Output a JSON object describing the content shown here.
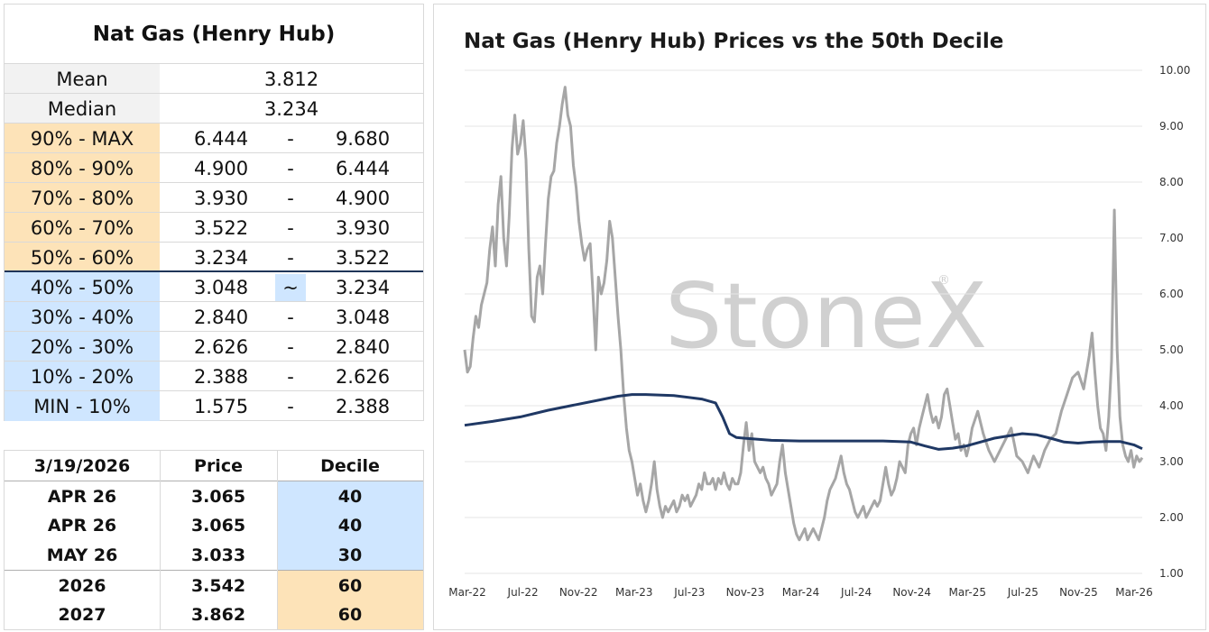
{
  "decile_table": {
    "title": "Nat Gas (Henry Hub)",
    "mean_label": "Mean",
    "mean_value": "3.812",
    "median_label": "Median",
    "median_value": "3.234",
    "rows": [
      {
        "label": "90% - MAX",
        "low": "6.444",
        "sep": "-",
        "high": "9.680",
        "zone": "orange"
      },
      {
        "label": "80% - 90%",
        "low": "4.900",
        "sep": "-",
        "high": "6.444",
        "zone": "orange"
      },
      {
        "label": "70% - 80%",
        "low": "3.930",
        "sep": "-",
        "high": "4.900",
        "zone": "orange"
      },
      {
        "label": "60% - 70%",
        "low": "3.522",
        "sep": "-",
        "high": "3.930",
        "zone": "orange"
      },
      {
        "label": "50% - 60%",
        "low": "3.234",
        "sep": "-",
        "high": "3.522",
        "zone": "orange"
      },
      {
        "label": "40% - 50%",
        "low": "3.048",
        "sep": "~",
        "high": "3.234",
        "zone": "blue"
      },
      {
        "label": "30% - 40%",
        "low": "2.840",
        "sep": "-",
        "high": "3.048",
        "zone": "blue"
      },
      {
        "label": "20% - 30%",
        "low": "2.626",
        "sep": "-",
        "high": "2.840",
        "zone": "blue"
      },
      {
        "label": "10% - 20%",
        "low": "2.388",
        "sep": "-",
        "high": "2.626",
        "zone": "blue"
      },
      {
        "label": "MIN - 10%",
        "low": "1.575",
        "sep": "-",
        "high": "2.388",
        "zone": "blue"
      }
    ],
    "colors": {
      "above_median": "#fde3b8",
      "below_median": "#cfe6ff",
      "median_rule": "#1f3558"
    }
  },
  "quote_table": {
    "headers": {
      "date": "3/19/2026",
      "price": "Price",
      "decile": "Decile"
    },
    "rows": [
      {
        "contract": "APR 26",
        "price": "3.065",
        "decile": "40",
        "zone": "blue"
      },
      {
        "contract": "APR 26",
        "price": "3.065",
        "decile": "40",
        "zone": "blue"
      },
      {
        "contract": "MAY 26",
        "price": "3.033",
        "decile": "30",
        "zone": "blue"
      },
      {
        "contract": "2026",
        "price": "3.542",
        "decile": "60",
        "zone": "orange"
      },
      {
        "contract": "2027",
        "price": "3.862",
        "decile": "60",
        "zone": "orange"
      }
    ]
  },
  "chart_data": {
    "type": "line",
    "title": "Nat Gas (Henry Hub) Prices vs the 50th Decile",
    "xlabel": "",
    "ylabel": "",
    "ylim": [
      1.0,
      10.0
    ],
    "yticks": [
      "1.00",
      "2.00",
      "3.00",
      "4.00",
      "5.00",
      "6.00",
      "7.00",
      "8.00",
      "9.00",
      "10.00"
    ],
    "y_axis_side": "right",
    "x_tick_labels": [
      "Mar-22",
      "Jul-22",
      "Nov-22",
      "Mar-23",
      "Jul-23",
      "Nov-23",
      "Mar-24",
      "Jul-24",
      "Nov-24",
      "Mar-25",
      "Jul-25",
      "Nov-25",
      "Mar-26"
    ],
    "x_range_months": [
      0,
      48.6
    ],
    "grid": "horizontal",
    "legend": "none",
    "watermark": "StoneX",
    "series": [
      {
        "color": "#a6a6a6",
        "points": [
          [
            0.0,
            5.0
          ],
          [
            0.2,
            4.6
          ],
          [
            0.4,
            4.7
          ],
          [
            0.6,
            5.2
          ],
          [
            0.8,
            5.6
          ],
          [
            1.0,
            5.4
          ],
          [
            1.2,
            5.8
          ],
          [
            1.4,
            6.0
          ],
          [
            1.6,
            6.2
          ],
          [
            1.8,
            6.8
          ],
          [
            2.0,
            7.2
          ],
          [
            2.2,
            6.5
          ],
          [
            2.4,
            7.6
          ],
          [
            2.6,
            8.1
          ],
          [
            2.8,
            7.0
          ],
          [
            3.0,
            6.5
          ],
          [
            3.2,
            7.4
          ],
          [
            3.4,
            8.6
          ],
          [
            3.6,
            9.2
          ],
          [
            3.8,
            8.5
          ],
          [
            4.0,
            8.7
          ],
          [
            4.2,
            9.1
          ],
          [
            4.4,
            8.4
          ],
          [
            4.6,
            6.8
          ],
          [
            4.8,
            5.6
          ],
          [
            5.0,
            5.5
          ],
          [
            5.2,
            6.3
          ],
          [
            5.4,
            6.5
          ],
          [
            5.6,
            6.0
          ],
          [
            5.8,
            6.9
          ],
          [
            6.0,
            7.7
          ],
          [
            6.2,
            8.1
          ],
          [
            6.4,
            8.2
          ],
          [
            6.6,
            8.7
          ],
          [
            6.8,
            9.0
          ],
          [
            7.0,
            9.4
          ],
          [
            7.2,
            9.7
          ],
          [
            7.4,
            9.2
          ],
          [
            7.6,
            9.0
          ],
          [
            7.8,
            8.3
          ],
          [
            8.0,
            7.9
          ],
          [
            8.2,
            7.3
          ],
          [
            8.4,
            6.9
          ],
          [
            8.6,
            6.6
          ],
          [
            8.8,
            6.8
          ],
          [
            9.0,
            6.9
          ],
          [
            9.2,
            6.0
          ],
          [
            9.4,
            5.0
          ],
          [
            9.6,
            6.3
          ],
          [
            9.8,
            6.0
          ],
          [
            10.0,
            6.2
          ],
          [
            10.2,
            6.6
          ],
          [
            10.4,
            7.3
          ],
          [
            10.6,
            7.0
          ],
          [
            10.8,
            6.3
          ],
          [
            11.0,
            5.6
          ],
          [
            11.2,
            5.0
          ],
          [
            11.4,
            4.2
          ],
          [
            11.6,
            3.6
          ],
          [
            11.8,
            3.2
          ],
          [
            12.0,
            3.0
          ],
          [
            12.2,
            2.7
          ],
          [
            12.4,
            2.4
          ],
          [
            12.6,
            2.6
          ],
          [
            12.8,
            2.3
          ],
          [
            13.0,
            2.1
          ],
          [
            13.2,
            2.3
          ],
          [
            13.4,
            2.6
          ],
          [
            13.6,
            3.0
          ],
          [
            13.8,
            2.5
          ],
          [
            14.0,
            2.2
          ],
          [
            14.2,
            2.0
          ],
          [
            14.4,
            2.2
          ],
          [
            14.6,
            2.1
          ],
          [
            14.8,
            2.2
          ],
          [
            15.0,
            2.3
          ],
          [
            15.2,
            2.1
          ],
          [
            15.4,
            2.2
          ],
          [
            15.6,
            2.4
          ],
          [
            15.8,
            2.3
          ],
          [
            16.0,
            2.4
          ],
          [
            16.2,
            2.2
          ],
          [
            16.4,
            2.3
          ],
          [
            16.6,
            2.4
          ],
          [
            16.8,
            2.6
          ],
          [
            17.0,
            2.5
          ],
          [
            17.2,
            2.8
          ],
          [
            17.4,
            2.6
          ],
          [
            17.6,
            2.6
          ],
          [
            17.8,
            2.7
          ],
          [
            18.0,
            2.5
          ],
          [
            18.2,
            2.7
          ],
          [
            18.4,
            2.6
          ],
          [
            18.6,
            2.8
          ],
          [
            18.8,
            2.6
          ],
          [
            19.0,
            2.5
          ],
          [
            19.2,
            2.7
          ],
          [
            19.4,
            2.6
          ],
          [
            19.6,
            2.6
          ],
          [
            19.8,
            2.8
          ],
          [
            20.0,
            3.3
          ],
          [
            20.2,
            3.7
          ],
          [
            20.4,
            3.2
          ],
          [
            20.6,
            3.5
          ],
          [
            20.8,
            3.0
          ],
          [
            21.0,
            2.9
          ],
          [
            21.2,
            2.8
          ],
          [
            21.4,
            2.9
          ],
          [
            21.6,
            2.7
          ],
          [
            21.8,
            2.6
          ],
          [
            22.0,
            2.4
          ],
          [
            22.2,
            2.5
          ],
          [
            22.4,
            2.6
          ],
          [
            22.6,
            3.0
          ],
          [
            22.8,
            3.3
          ],
          [
            23.0,
            2.8
          ],
          [
            23.2,
            2.5
          ],
          [
            23.4,
            2.2
          ],
          [
            23.6,
            1.9
          ],
          [
            23.8,
            1.7
          ],
          [
            24.0,
            1.6
          ],
          [
            24.2,
            1.7
          ],
          [
            24.4,
            1.8
          ],
          [
            24.6,
            1.6
          ],
          [
            24.8,
            1.7
          ],
          [
            25.0,
            1.8
          ],
          [
            25.2,
            1.7
          ],
          [
            25.4,
            1.6
          ],
          [
            25.6,
            1.8
          ],
          [
            25.8,
            2.0
          ],
          [
            26.0,
            2.3
          ],
          [
            26.2,
            2.5
          ],
          [
            26.4,
            2.6
          ],
          [
            26.6,
            2.7
          ],
          [
            26.8,
            2.9
          ],
          [
            27.0,
            3.1
          ],
          [
            27.2,
            2.8
          ],
          [
            27.4,
            2.6
          ],
          [
            27.6,
            2.5
          ],
          [
            27.8,
            2.3
          ],
          [
            28.0,
            2.1
          ],
          [
            28.2,
            2.0
          ],
          [
            28.4,
            2.1
          ],
          [
            28.6,
            2.2
          ],
          [
            28.8,
            2.0
          ],
          [
            29.0,
            2.1
          ],
          [
            29.2,
            2.2
          ],
          [
            29.4,
            2.3
          ],
          [
            29.6,
            2.2
          ],
          [
            29.8,
            2.3
          ],
          [
            30.0,
            2.6
          ],
          [
            30.2,
            2.9
          ],
          [
            30.4,
            2.6
          ],
          [
            30.6,
            2.4
          ],
          [
            30.8,
            2.5
          ],
          [
            31.0,
            2.7
          ],
          [
            31.2,
            3.0
          ],
          [
            31.4,
            2.9
          ],
          [
            31.6,
            2.8
          ],
          [
            31.8,
            3.3
          ],
          [
            32.0,
            3.5
          ],
          [
            32.2,
            3.6
          ],
          [
            32.4,
            3.3
          ],
          [
            32.6,
            3.6
          ],
          [
            32.8,
            3.8
          ],
          [
            33.0,
            4.0
          ],
          [
            33.2,
            4.2
          ],
          [
            33.4,
            3.9
          ],
          [
            33.6,
            3.7
          ],
          [
            33.8,
            3.8
          ],
          [
            34.0,
            3.6
          ],
          [
            34.2,
            3.8
          ],
          [
            34.4,
            4.2
          ],
          [
            34.6,
            4.3
          ],
          [
            34.8,
            4.0
          ],
          [
            35.0,
            3.7
          ],
          [
            35.2,
            3.4
          ],
          [
            35.4,
            3.5
          ],
          [
            35.6,
            3.2
          ],
          [
            35.8,
            3.3
          ],
          [
            36.0,
            3.1
          ],
          [
            36.2,
            3.3
          ],
          [
            36.4,
            3.6
          ],
          [
            36.8,
            3.9
          ],
          [
            37.2,
            3.5
          ],
          [
            37.6,
            3.2
          ],
          [
            38.0,
            3.0
          ],
          [
            38.4,
            3.2
          ],
          [
            38.8,
            3.4
          ],
          [
            39.2,
            3.6
          ],
          [
            39.6,
            3.1
          ],
          [
            40.0,
            3.0
          ],
          [
            40.4,
            2.8
          ],
          [
            40.8,
            3.1
          ],
          [
            41.2,
            2.9
          ],
          [
            41.6,
            3.2
          ],
          [
            42.0,
            3.4
          ],
          [
            42.4,
            3.5
          ],
          [
            42.8,
            3.9
          ],
          [
            43.2,
            4.2
          ],
          [
            43.6,
            4.5
          ],
          [
            44.0,
            4.6
          ],
          [
            44.4,
            4.3
          ],
          [
            44.8,
            4.9
          ],
          [
            45.0,
            5.3
          ],
          [
            45.2,
            4.6
          ],
          [
            45.4,
            4.0
          ],
          [
            45.6,
            3.6
          ],
          [
            45.8,
            3.5
          ],
          [
            46.0,
            3.2
          ],
          [
            46.2,
            3.8
          ],
          [
            46.4,
            4.8
          ],
          [
            46.6,
            7.5
          ],
          [
            46.8,
            5.0
          ],
          [
            47.0,
            3.8
          ],
          [
            47.2,
            3.3
          ],
          [
            47.4,
            3.1
          ],
          [
            47.6,
            3.0
          ],
          [
            47.8,
            3.2
          ],
          [
            48.0,
            2.9
          ],
          [
            48.2,
            3.1
          ],
          [
            48.4,
            3.0
          ],
          [
            48.6,
            3.07
          ]
        ]
      },
      {
        "color": "#1f3864",
        "points": [
          [
            0.0,
            3.65
          ],
          [
            2.0,
            3.72
          ],
          [
            4.0,
            3.8
          ],
          [
            6.0,
            3.92
          ],
          [
            8.0,
            4.02
          ],
          [
            10.0,
            4.12
          ],
          [
            11.0,
            4.17
          ],
          [
            12.0,
            4.2
          ],
          [
            13.0,
            4.2
          ],
          [
            15.0,
            4.18
          ],
          [
            17.0,
            4.12
          ],
          [
            18.0,
            4.05
          ],
          [
            18.5,
            3.8
          ],
          [
            19.0,
            3.5
          ],
          [
            19.5,
            3.43
          ],
          [
            20.0,
            3.42
          ],
          [
            22.0,
            3.38
          ],
          [
            24.0,
            3.37
          ],
          [
            26.0,
            3.37
          ],
          [
            28.0,
            3.37
          ],
          [
            30.0,
            3.37
          ],
          [
            32.0,
            3.35
          ],
          [
            33.0,
            3.28
          ],
          [
            34.0,
            3.22
          ],
          [
            35.0,
            3.24
          ],
          [
            36.0,
            3.28
          ],
          [
            37.0,
            3.35
          ],
          [
            38.0,
            3.42
          ],
          [
            40.0,
            3.5
          ],
          [
            41.0,
            3.48
          ],
          [
            42.0,
            3.42
          ],
          [
            43.0,
            3.35
          ],
          [
            44.0,
            3.33
          ],
          [
            45.0,
            3.35
          ],
          [
            46.0,
            3.36
          ],
          [
            47.0,
            3.36
          ],
          [
            48.0,
            3.3
          ],
          [
            48.6,
            3.23
          ]
        ]
      }
    ]
  }
}
